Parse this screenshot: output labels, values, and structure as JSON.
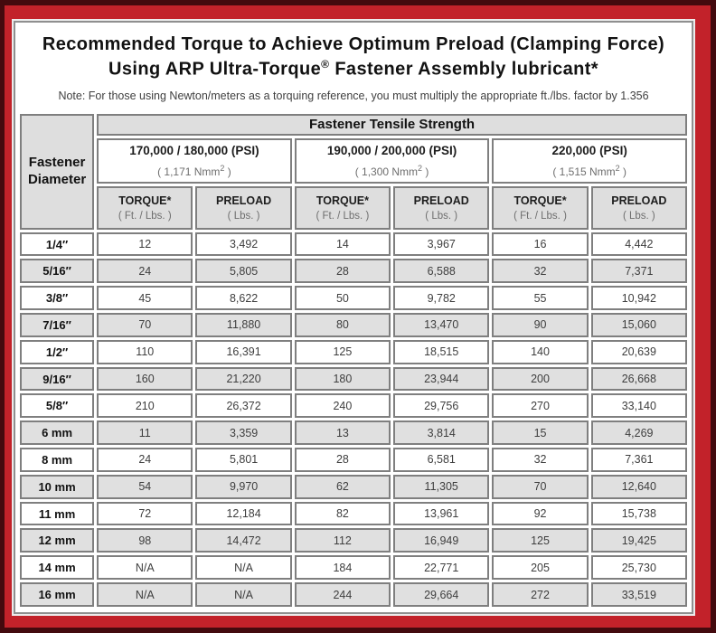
{
  "title": {
    "line1": "Recommended Torque to Achieve Optimum Preload (Clamping Force)",
    "line2_pre": "Using ARP Ultra-Torque",
    "line2_sup": "®",
    "line2_post": " Fastener Assembly lubricant*"
  },
  "note": "Note: For those using Newton/meters as a torquing reference, you must multiply the appropriate ft./lbs. factor by 1.356",
  "table": {
    "corner": {
      "line1": "Fastener",
      "line2": "Diameter"
    },
    "tensile_header": "Fastener Tensile Strength",
    "groups": [
      {
        "psi": "170,000 / 180,000 (PSI)",
        "nmm_pre": "( 1,171 Nmm",
        "nmm_sup": "2",
        "nmm_post": " )"
      },
      {
        "psi": "190,000 / 200,000 (PSI)",
        "nmm_pre": "( 1,300 Nmm",
        "nmm_sup": "2",
        "nmm_post": " )"
      },
      {
        "psi": "220,000 (PSI)",
        "nmm_pre": "( 1,515 Nmm",
        "nmm_sup": "2",
        "nmm_post": " )"
      }
    ],
    "subheaders": {
      "torque_label": "TORQUE*",
      "torque_unit": "( Ft. / Lbs. )",
      "preload_label": "PRELOAD",
      "preload_unit": "( Lbs. )"
    },
    "rows": [
      {
        "diameter": "1/4″",
        "values": [
          "12",
          "3,492",
          "14",
          "3,967",
          "16",
          "4,442"
        ]
      },
      {
        "diameter": "5/16″",
        "values": [
          "24",
          "5,805",
          "28",
          "6,588",
          "32",
          "7,371"
        ]
      },
      {
        "diameter": "3/8″",
        "values": [
          "45",
          "8,622",
          "50",
          "9,782",
          "55",
          "10,942"
        ]
      },
      {
        "diameter": "7/16″",
        "values": [
          "70",
          "11,880",
          "80",
          "13,470",
          "90",
          "15,060"
        ]
      },
      {
        "diameter": "1/2″",
        "values": [
          "110",
          "16,391",
          "125",
          "18,515",
          "140",
          "20,639"
        ]
      },
      {
        "diameter": "9/16″",
        "values": [
          "160",
          "21,220",
          "180",
          "23,944",
          "200",
          "26,668"
        ]
      },
      {
        "diameter": "5/8″",
        "values": [
          "210",
          "26,372",
          "240",
          "29,756",
          "270",
          "33,140"
        ]
      },
      {
        "diameter": "6 mm",
        "values": [
          "11",
          "3,359",
          "13",
          "3,814",
          "15",
          "4,269"
        ]
      },
      {
        "diameter": "8 mm",
        "values": [
          "24",
          "5,801",
          "28",
          "6,581",
          "32",
          "7,361"
        ]
      },
      {
        "diameter": "10 mm",
        "values": [
          "54",
          "9,970",
          "62",
          "11,305",
          "70",
          "12,640"
        ]
      },
      {
        "diameter": "11 mm",
        "values": [
          "72",
          "12,184",
          "82",
          "13,961",
          "92",
          "15,738"
        ]
      },
      {
        "diameter": "12 mm",
        "values": [
          "98",
          "14,472",
          "112",
          "16,949",
          "125",
          "19,425"
        ]
      },
      {
        "diameter": "14 mm",
        "values": [
          "N/A",
          "N/A",
          "184",
          "22,771",
          "205",
          "25,730"
        ]
      },
      {
        "diameter": "16 mm",
        "values": [
          "N/A",
          "N/A",
          "244",
          "29,664",
          "272",
          "33,519"
        ]
      }
    ]
  },
  "colors": {
    "frame_outer": "#430a0e",
    "frame_red": "#c2222a",
    "cell_border": "#7f7f7f",
    "row_alt_bg": "#e0e0e0",
    "header_bg": "#dedede"
  }
}
